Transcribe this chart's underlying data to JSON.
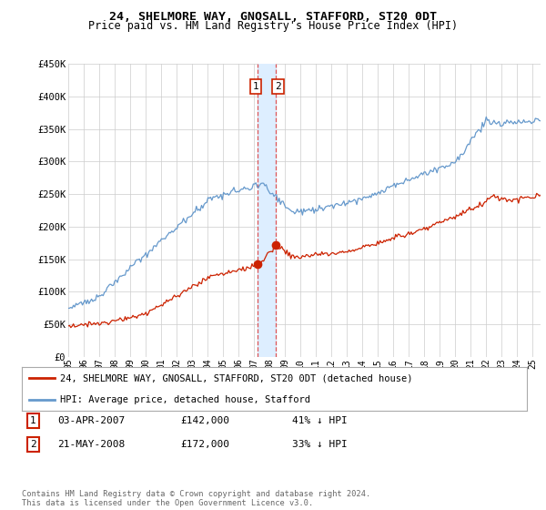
{
  "title": "24, SHELMORE WAY, GNOSALL, STAFFORD, ST20 0DT",
  "subtitle": "Price paid vs. HM Land Registry's House Price Index (HPI)",
  "ylim": [
    0,
    450000
  ],
  "yticks": [
    0,
    50000,
    100000,
    150000,
    200000,
    250000,
    300000,
    350000,
    400000,
    450000
  ],
  "ytick_labels": [
    "£0",
    "£50K",
    "£100K",
    "£150K",
    "£200K",
    "£250K",
    "£300K",
    "£350K",
    "£400K",
    "£450K"
  ],
  "hpi_color": "#6699cc",
  "price_color": "#cc2200",
  "vline_color": "#dd4444",
  "shade_color": "#ddeeff",
  "marker_color": "#cc2200",
  "xmin": 1995,
  "xmax": 2025.5,
  "transactions": [
    {
      "date_num": 2007.25,
      "price": 142000,
      "label": "1"
    },
    {
      "date_num": 2008.4,
      "price": 172000,
      "label": "2"
    }
  ],
  "legend_entries": [
    {
      "label": "24, SHELMORE WAY, GNOSALL, STAFFORD, ST20 0DT (detached house)",
      "color": "#cc2200"
    },
    {
      "label": "HPI: Average price, detached house, Stafford",
      "color": "#6699cc"
    }
  ],
  "table_rows": [
    {
      "num": "1",
      "date": "03-APR-2007",
      "price": "£142,000",
      "pct": "41% ↓ HPI"
    },
    {
      "num": "2",
      "date": "21-MAY-2008",
      "price": "£172,000",
      "pct": "33% ↓ HPI"
    }
  ],
  "footer": "Contains HM Land Registry data © Crown copyright and database right 2024.\nThis data is licensed under the Open Government Licence v3.0.",
  "bg_color": "#ffffff",
  "grid_color": "#cccccc"
}
